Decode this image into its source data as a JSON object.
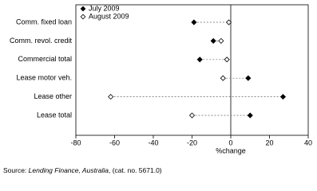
{
  "chart_data": {
    "type": "dot",
    "categories": [
      "Comm. fixed loan",
      "Comm. revol. credit",
      "Commercial total",
      "Lease motor veh.",
      "Lease other",
      "Lease total"
    ],
    "series": [
      {
        "name": "July 2009",
        "color": "#000000",
        "marker": "filled-diamond",
        "values": [
          -19,
          -9,
          -16,
          9,
          27,
          10
        ]
      },
      {
        "name": "August 2009",
        "color": "#000000",
        "marker": "open-diamond",
        "values": [
          -1,
          -5,
          -2,
          -4,
          -62,
          -20
        ]
      }
    ],
    "xlabel": "%change",
    "xlim": [
      -80,
      40
    ],
    "xticks": [
      -80,
      -60,
      -40,
      -20,
      0,
      20,
      40
    ],
    "legend": "top-left",
    "source": {
      "prefix": "Source: ",
      "title": "Lending Finance, Australia",
      "suffix": ", (cat. no. 5671.0)"
    }
  }
}
